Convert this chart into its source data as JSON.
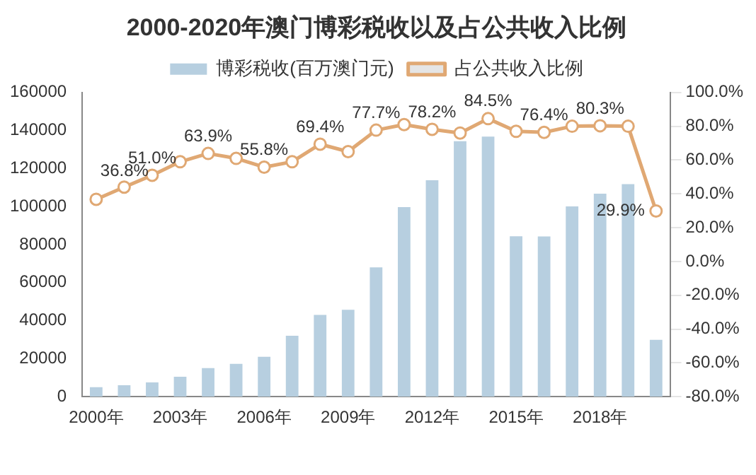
{
  "chart_data": {
    "type": "bar",
    "title": "2000-2020年澳门博彩税收以及占公共收入比例",
    "categories": [
      "2000年",
      null,
      null,
      "2003年",
      null,
      null,
      "2006年",
      null,
      null,
      "2009年",
      null,
      null,
      "2012年",
      null,
      null,
      "2015年",
      null,
      null,
      "2018年",
      null,
      null
    ],
    "series": [
      {
        "name": "博彩税收(百万澳门元)",
        "color": "#b7cfe0",
        "values": [
          5000,
          6000,
          7500,
          10500,
          15000,
          17300,
          21000,
          32000,
          43000,
          45700,
          68000,
          99700,
          113800,
          134400,
          136800,
          84400,
          84300,
          100100,
          106800,
          111800,
          29900
        ]
      },
      {
        "name": "占公共收入比例",
        "type": "line",
        "axis": "y2",
        "color": "#e0a873",
        "marker": "circle",
        "values": [
          36.8,
          44,
          51.0,
          59,
          63.9,
          61,
          55.8,
          59,
          69.4,
          65,
          77.7,
          81,
          78.2,
          76,
          84.5,
          77,
          76.4,
          80,
          80.3,
          80,
          29.9
        ],
        "value_labels": [
          "36.8%",
          null,
          "51.0%",
          null,
          "63.9%",
          null,
          "55.8%",
          null,
          "69.4%",
          null,
          "77.7%",
          null,
          "78.2%",
          null,
          "84.5%",
          null,
          "76.4%",
          null,
          "80.3%",
          null,
          "29.9%"
        ]
      }
    ],
    "ylim": [
      0,
      160000
    ],
    "yticks": [
      0,
      20000,
      40000,
      60000,
      80000,
      100000,
      120000,
      140000,
      160000
    ],
    "y2lim": [
      -80,
      100
    ],
    "y2ticks": [
      {
        "value": -80,
        "label": "-80.0%"
      },
      {
        "value": -60,
        "label": "-60.0%"
      },
      {
        "value": -40,
        "label": "-40.0%"
      },
      {
        "value": -20,
        "label": "-20.0%"
      },
      {
        "value": 0,
        "label": "0.0%"
      },
      {
        "value": 20,
        "label": "20.0%"
      },
      {
        "value": 40,
        "label": "40.0%"
      },
      {
        "value": 60,
        "label": "60.0%"
      },
      {
        "value": 80,
        "label": "80.0%"
      },
      {
        "value": 100,
        "label": "100.0%"
      }
    ],
    "legend": "top",
    "grid": false
  }
}
